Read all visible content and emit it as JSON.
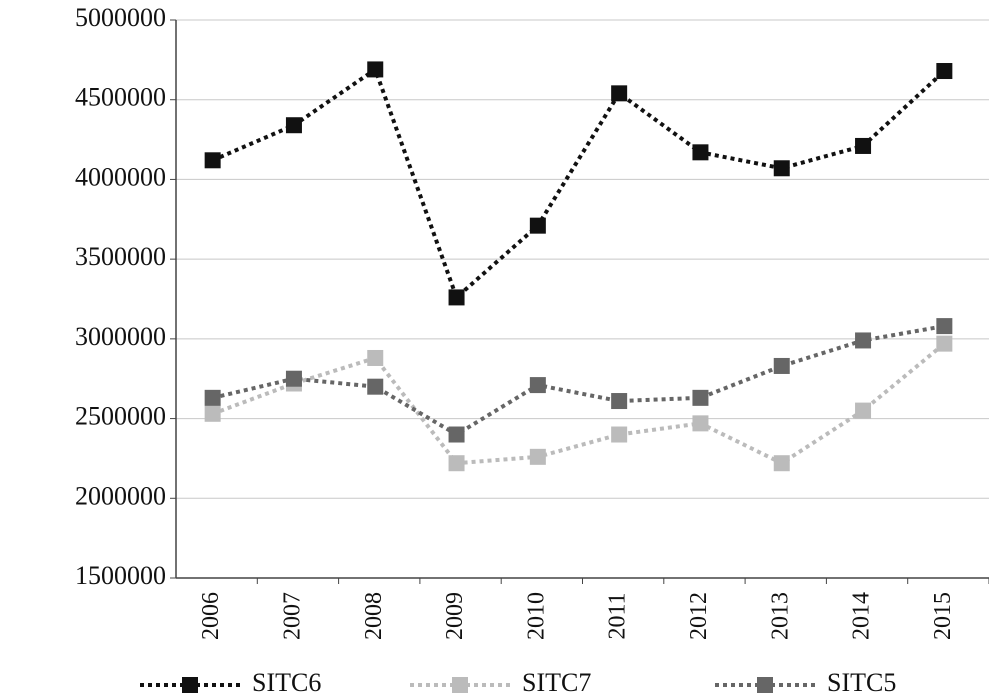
{
  "chart_data": {
    "type": "line",
    "categories": [
      "2006",
      "2007",
      "2008",
      "2009",
      "2010",
      "2011",
      "2012",
      "2013",
      "2014",
      "2015"
    ],
    "series": [
      {
        "name": "SITC6",
        "color": "#111111",
        "values": [
          4120000,
          4340000,
          4690000,
          3260000,
          3710000,
          4540000,
          4170000,
          4070000,
          4210000,
          4680000
        ]
      },
      {
        "name": "SITC7",
        "color": "#bbbbbb",
        "values": [
          2530000,
          2720000,
          2880000,
          2220000,
          2260000,
          2400000,
          2470000,
          2220000,
          2550000,
          2970000
        ]
      },
      {
        "name": "SITC5",
        "color": "#666666",
        "values": [
          2630000,
          2750000,
          2700000,
          2400000,
          2710000,
          2610000,
          2630000,
          2830000,
          2990000,
          3080000
        ]
      }
    ],
    "ylim": [
      1500000,
      5000000
    ],
    "yticks": [
      1500000,
      2000000,
      2500000,
      3000000,
      3500000,
      4000000,
      4500000,
      5000000
    ],
    "grid": true,
    "legend": "bottom"
  }
}
